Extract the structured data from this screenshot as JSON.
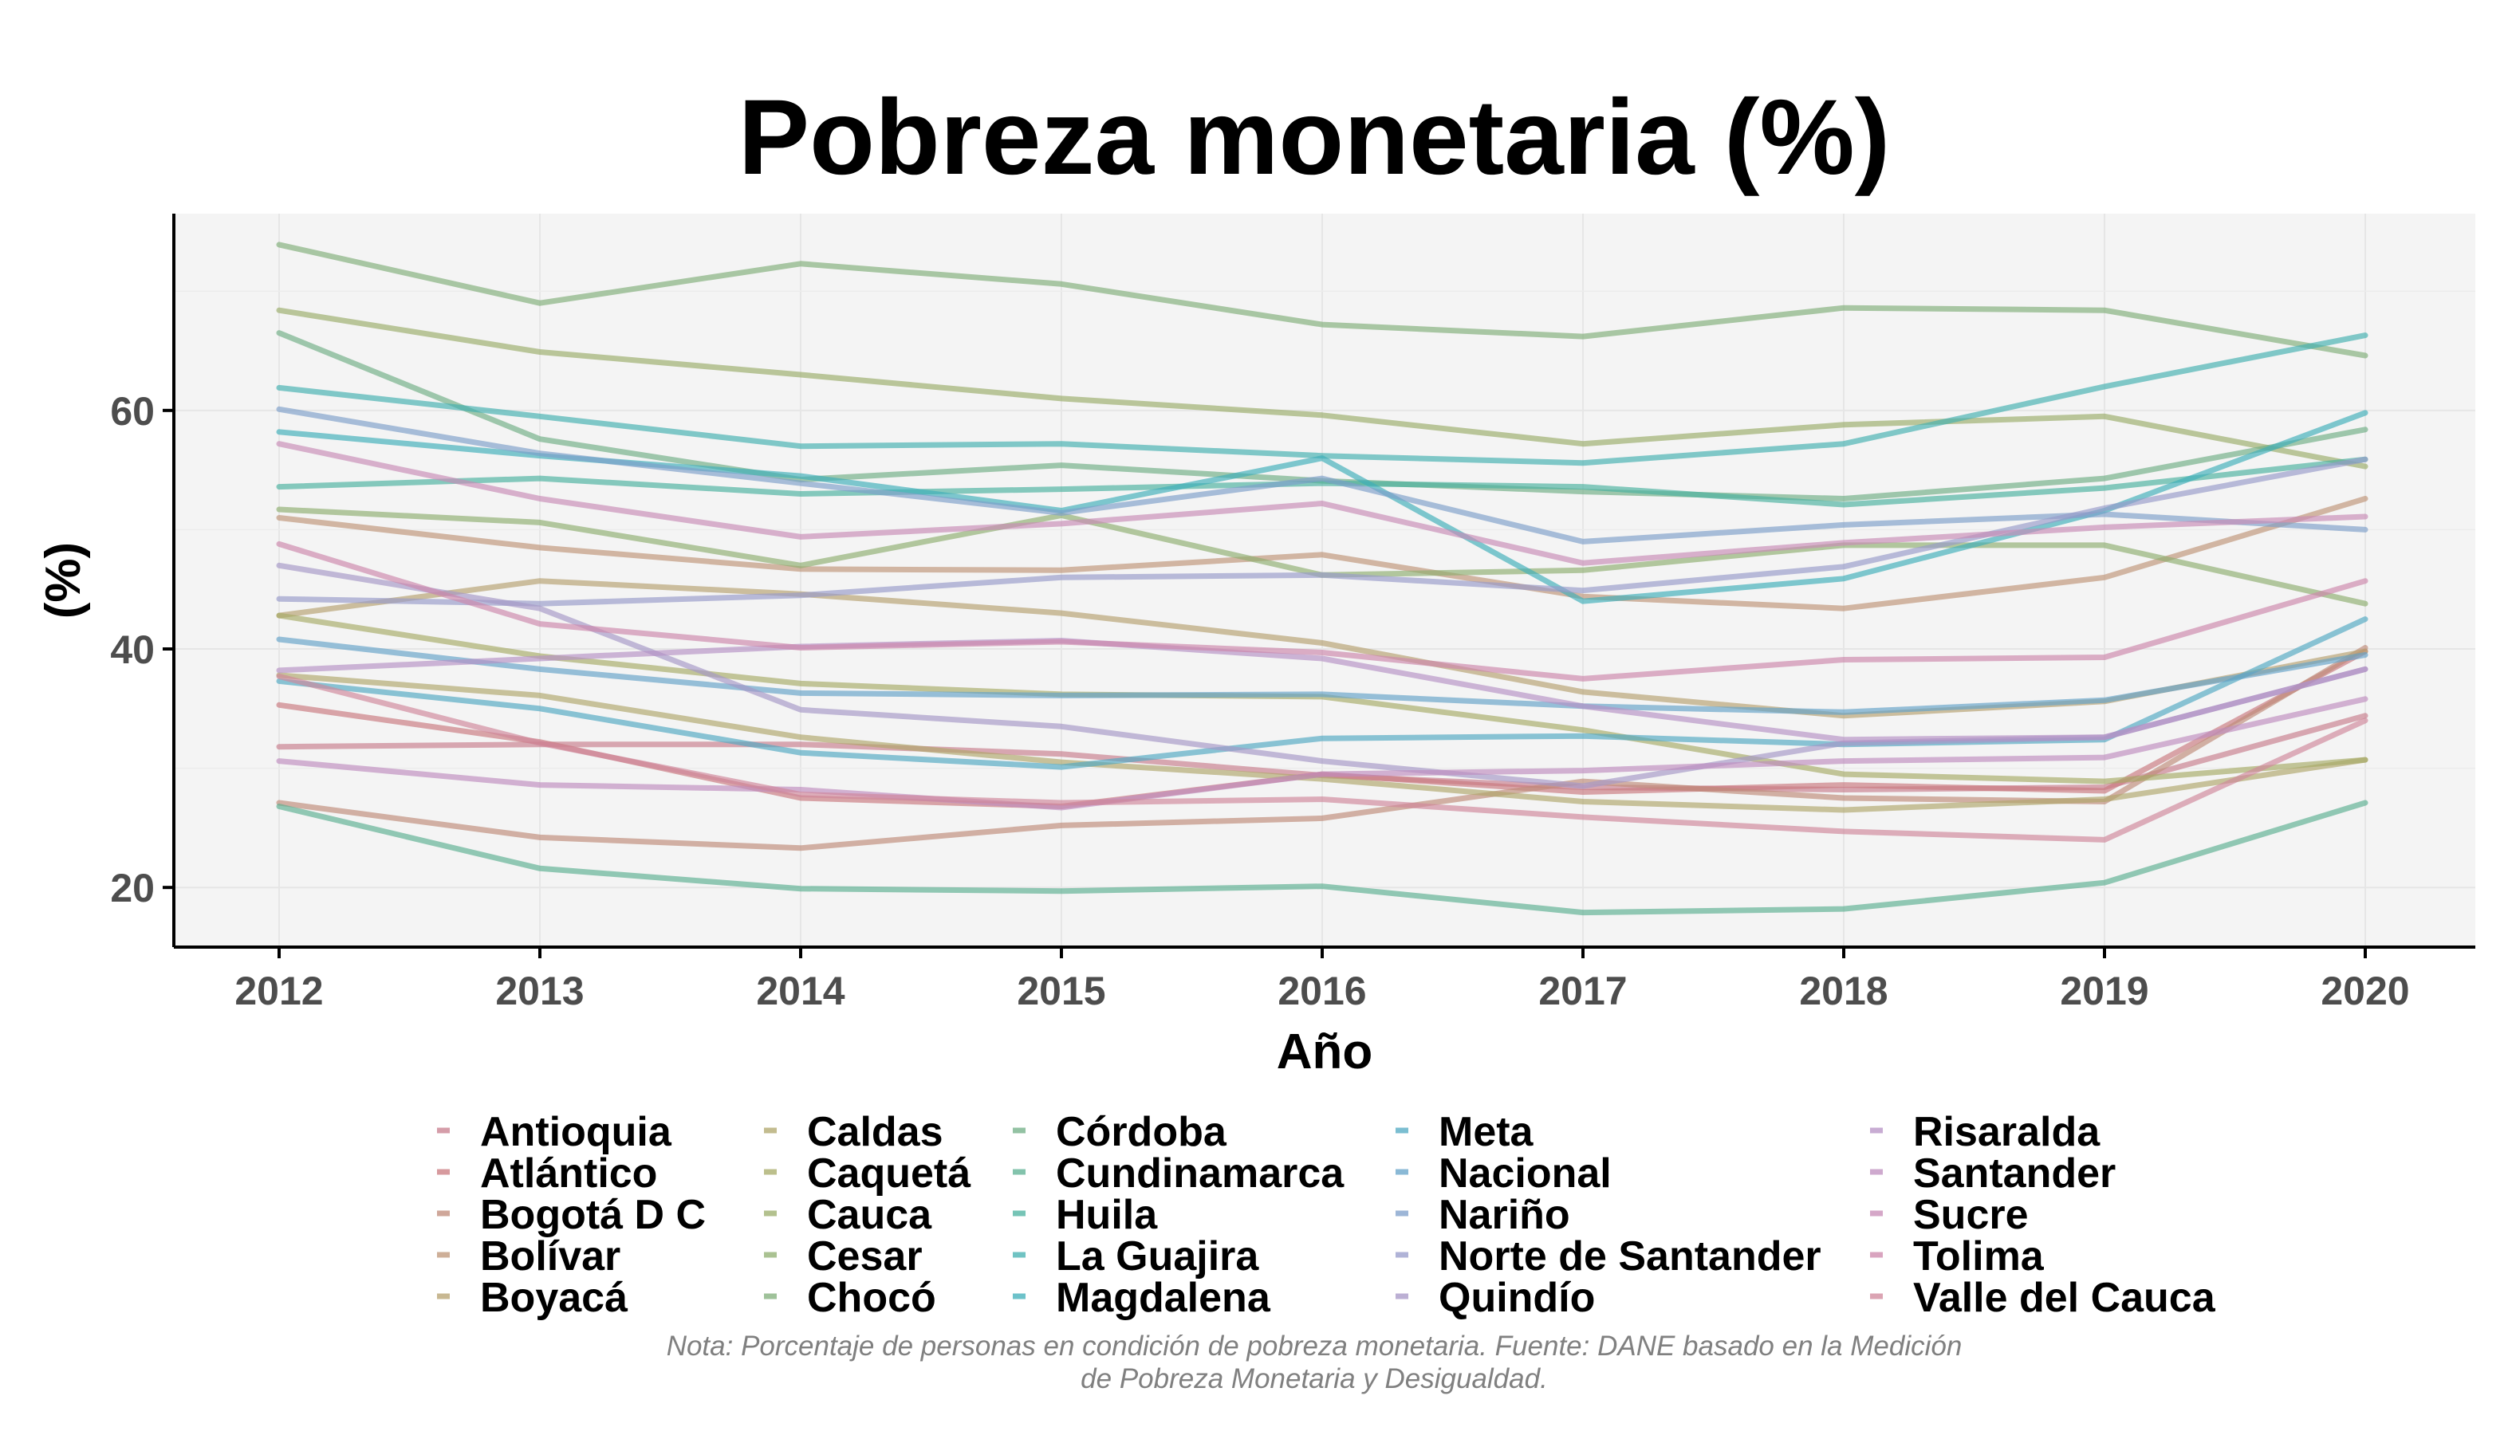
{
  "chart_data": {
    "type": "line",
    "title": "Pobreza monetaria (%)",
    "xlabel": "Año",
    "ylabel": "(%)",
    "x": [
      2012,
      2013,
      2014,
      2015,
      2016,
      2017,
      2018,
      2019,
      2020
    ],
    "xticks": [
      "2012",
      "2013",
      "2014",
      "2015",
      "2016",
      "2017",
      "2018",
      "2019",
      "2020"
    ],
    "yticks": [
      "20",
      "40",
      "60"
    ],
    "ylim": [
      15.0,
      76.5
    ],
    "grid": true,
    "legend_position": "bottom",
    "note_lines": [
      "Nota: Porcentaje de personas en condición de pobreza monetaria. Fuente: DANE basado en la Medición",
      "de Pobreza Monetaria y Desigualdad."
    ],
    "series": [
      {
        "name": "Antioquia",
        "color": "#C77C8C",
        "values": [
          31.8,
          32.0,
          32.0,
          31.2,
          29.4,
          28.4,
          28.2,
          28.4,
          34.4
        ]
      },
      {
        "name": "Atlántico",
        "color": "#C9787E",
        "values": [
          35.3,
          32.2,
          27.5,
          26.8,
          29.5,
          28.0,
          28.6,
          28.1,
          39.8
        ]
      },
      {
        "name": "Bogotá D C",
        "color": "#BF8A78",
        "values": [
          27.1,
          24.2,
          23.3,
          25.2,
          25.8,
          28.9,
          27.5,
          27.2,
          40.1
        ]
      },
      {
        "name": "Bolívar",
        "color": "#BE9476",
        "values": [
          51.0,
          48.5,
          46.7,
          46.6,
          47.9,
          44.4,
          43.4,
          46.0,
          52.6
        ]
      },
      {
        "name": "Boyacá",
        "color": "#B6A06E",
        "values": [
          42.8,
          45.7,
          44.6,
          43.0,
          40.5,
          36.4,
          34.4,
          35.6,
          39.8
        ]
      },
      {
        "name": "Caldas",
        "color": "#AFA66A",
        "values": [
          37.8,
          36.1,
          32.6,
          30.5,
          29.1,
          27.2,
          26.5,
          27.4,
          30.7
        ]
      },
      {
        "name": "Caquetá",
        "color": "#A6AA66",
        "values": [
          42.8,
          39.4,
          37.1,
          36.2,
          36.0,
          33.2,
          29.5,
          28.9,
          30.7
        ]
      },
      {
        "name": "Cauca",
        "color": "#9AAC68",
        "values": [
          68.4,
          64.9,
          63.0,
          61.0,
          59.6,
          57.2,
          58.8,
          59.5,
          55.3
        ]
      },
      {
        "name": "Cesar",
        "color": "#8DAE6E",
        "values": [
          51.7,
          50.6,
          47.0,
          51.2,
          46.2,
          46.6,
          48.7,
          48.7,
          43.8
        ]
      },
      {
        "name": "Chocó",
        "color": "#7FAE78",
        "values": [
          73.9,
          69.0,
          72.3,
          70.6,
          67.2,
          66.2,
          68.6,
          68.4,
          64.6
        ]
      },
      {
        "name": "Córdoba",
        "color": "#6FAE84",
        "values": [
          66.5,
          57.6,
          54.2,
          55.4,
          54.1,
          53.2,
          52.6,
          54.3,
          58.4
        ]
      },
      {
        "name": "Cundinamarca",
        "color": "#5AAF90",
        "values": [
          26.8,
          21.6,
          19.9,
          19.7,
          20.1,
          17.9,
          18.2,
          20.4,
          27.1
        ]
      },
      {
        "name": "Huila",
        "color": "#48B09E",
        "values": [
          53.6,
          54.3,
          53.0,
          53.4,
          53.9,
          53.6,
          52.1,
          53.5,
          55.9
        ]
      },
      {
        "name": "La Guajira",
        "color": "#40AFAF",
        "values": [
          61.9,
          59.5,
          57.0,
          57.2,
          56.2,
          55.6,
          57.2,
          62.0,
          66.3
        ]
      },
      {
        "name": "Magdalena",
        "color": "#3CADB8",
        "values": [
          58.2,
          56.2,
          54.5,
          51.6,
          56.0,
          44.0,
          45.9,
          51.6,
          59.8
        ]
      },
      {
        "name": "Meta",
        "color": "#4FA8C2",
        "values": [
          37.3,
          35.0,
          31.3,
          30.1,
          32.5,
          32.7,
          32.0,
          32.4,
          42.5
        ]
      },
      {
        "name": "Nacional",
        "color": "#63A2C8",
        "values": [
          40.8,
          38.3,
          36.3,
          36.1,
          36.2,
          35.2,
          34.7,
          35.7,
          39.5
        ]
      },
      {
        "name": "Nariño",
        "color": "#7C9ECA",
        "values": [
          60.1,
          56.4,
          53.9,
          51.4,
          54.3,
          49.0,
          50.4,
          51.3,
          50.0
        ]
      },
      {
        "name": "Norte de Santander",
        "color": "#969ACA",
        "values": [
          44.2,
          43.8,
          44.5,
          46.0,
          46.2,
          44.9,
          46.9,
          51.8,
          55.9
        ]
      },
      {
        "name": "Quindío",
        "color": "#A596C6",
        "values": [
          47.0,
          43.4,
          34.9,
          33.5,
          30.6,
          28.5,
          32.1,
          32.6,
          38.3
        ]
      },
      {
        "name": "Risaralda",
        "color": "#B590C4",
        "values": [
          38.2,
          39.2,
          40.2,
          40.7,
          39.2,
          35.2,
          32.4,
          32.6,
          38.3
        ]
      },
      {
        "name": "Santander",
        "color": "#BE8CBE",
        "values": [
          30.6,
          28.6,
          28.2,
          26.7,
          29.5,
          29.8,
          30.6,
          30.9,
          35.8
        ]
      },
      {
        "name": "Sucre",
        "color": "#C78AB6",
        "values": [
          57.2,
          52.6,
          49.4,
          50.5,
          52.2,
          47.2,
          48.9,
          50.2,
          51.1
        ]
      },
      {
        "name": "Tolima",
        "color": "#CC86AA",
        "values": [
          48.8,
          42.1,
          40.1,
          40.6,
          39.7,
          37.5,
          39.1,
          39.3,
          45.7
        ]
      },
      {
        "name": "Valle del Cauca",
        "color": "#CF859A",
        "values": [
          37.7,
          32.1,
          27.8,
          27.1,
          27.4,
          25.9,
          24.7,
          24.0,
          34.0
        ]
      }
    ]
  }
}
